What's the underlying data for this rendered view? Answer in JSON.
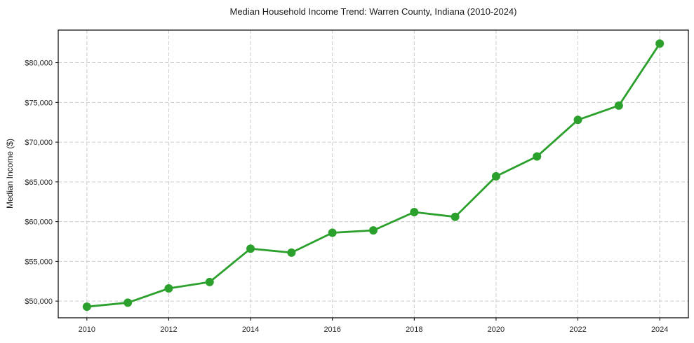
{
  "figure": {
    "title": "Median Household Income Trend: Warren County, Indiana (2010-2024)",
    "ylabel": "Median Income ($)"
  },
  "chart_data": {
    "type": "line",
    "title": "Median Household Income Trend: Warren County, Indiana (2010-2024)",
    "xlabel": "",
    "ylabel": "Median Income ($)",
    "series_name": "Median Household Income",
    "x": [
      2010,
      2011,
      2012,
      2013,
      2014,
      2015,
      2016,
      2017,
      2018,
      2019,
      2020,
      2021,
      2022,
      2023,
      2024
    ],
    "values": [
      49300,
      49800,
      51600,
      52400,
      56600,
      56100,
      58600,
      58900,
      61200,
      60600,
      65700,
      68200,
      72800,
      74600,
      82400
    ],
    "xticks": [
      2010,
      2012,
      2014,
      2016,
      2018,
      2020,
      2022,
      2024
    ],
    "xtick_labels": [
      "2010",
      "2012",
      "2014",
      "2016",
      "2018",
      "2020",
      "2022",
      "2024"
    ],
    "yticks": [
      50000,
      55000,
      60000,
      65000,
      70000,
      75000,
      80000
    ],
    "ytick_labels": [
      "$50,000",
      "$55,000",
      "$60,000",
      "$65,000",
      "$70,000",
      "$75,000",
      "$80,000"
    ],
    "xlim": [
      2009.3,
      2024.7
    ],
    "ylim": [
      47900,
      84100
    ],
    "grid": true,
    "legend": false,
    "line_color": "#2ca02c",
    "marker": "circle",
    "background": "#ffffff"
  }
}
